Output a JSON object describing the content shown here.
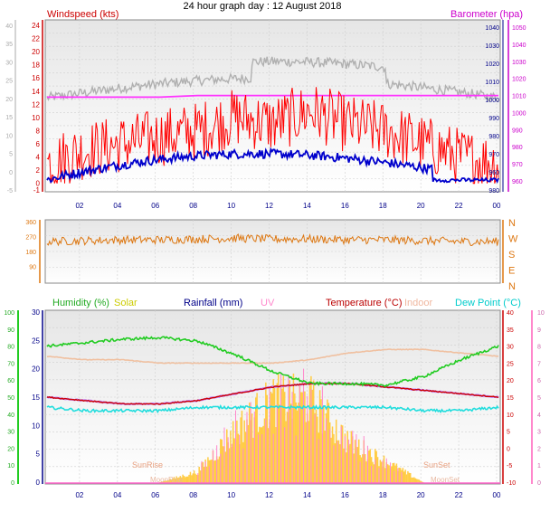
{
  "title": "24 hour graph day : 12 August 2018",
  "colors": {
    "wind_speed": "#ff0000",
    "wind_avg": "#0000cc",
    "gust": "#b0b0b0",
    "barometer": "#ff33ff",
    "direction": "#dd7711",
    "humidity": "#22cc22",
    "solar": "#ffcc44",
    "rainfall": "#000080",
    "uv": "#ff88cc",
    "temperature": "#cc0000",
    "indoor": "#f0c0a0",
    "dewpoint": "#22dddd",
    "heat": "#c080ff",
    "plot_bg": "#e8e8e8"
  },
  "x_ticks": [
    "02",
    "04",
    "06",
    "08",
    "10",
    "12",
    "14",
    "16",
    "18",
    "20",
    "22",
    "00"
  ],
  "panels": {
    "wind": {
      "left_label": "Windspeed (kts)",
      "right_label": "Barometer (hpa)",
      "left_ticks": [
        "-1",
        "0",
        "2",
        "4",
        "6",
        "8",
        "10",
        "12",
        "14",
        "16",
        "18",
        "20",
        "22",
        "24"
      ],
      "left_grey_ticks": [
        "-5",
        "0",
        "5",
        "10",
        "15",
        "20",
        "25",
        "30",
        "35",
        "40"
      ],
      "right_ticks": [
        "960",
        "970",
        "980",
        "990",
        "1000",
        "1010",
        "1020",
        "1030",
        "1040",
        "1050"
      ],
      "right_inner_ticks": [
        "980",
        "960",
        "970",
        "980",
        "990",
        "1000",
        "1010",
        "1020",
        "1030",
        "1040"
      ]
    },
    "direction": {
      "left_ticks": [
        "90",
        "180",
        "270",
        "360"
      ],
      "left_low_tick": "0",
      "compass": [
        "N",
        "W",
        "S",
        "E",
        "N"
      ]
    },
    "temp": {
      "labels": {
        "humidity": "Humidity (%)",
        "solar": "Solar",
        "rainfall": "Rainfall (mm)",
        "uv": "UV",
        "temperature": "Temperature (°C)",
        "indoor": "Indoor",
        "dewpoint": "Dew Point (°C)"
      },
      "outer_left_ticks": [
        "0",
        "10",
        "20",
        "30",
        "40",
        "50",
        "60",
        "70",
        "80",
        "90",
        "100"
      ],
      "inner_left_ticks": [
        "0",
        "5",
        "10",
        "15",
        "20",
        "25",
        "30"
      ],
      "inner_right_ticks": [
        "-10",
        "-5",
        "0",
        "5",
        "10",
        "15",
        "20",
        "25",
        "30",
        "35",
        "40"
      ],
      "outer_right_ticks": [
        "0",
        "1",
        "2",
        "3",
        "4",
        "5",
        "6",
        "7",
        "8",
        "9",
        "10"
      ],
      "sunrise": "SunRise",
      "sunset": "SunSet",
      "moonrise": "MoonRise",
      "moonset": "MoonSet"
    }
  },
  "chart_data": [
    {
      "type": "line",
      "title": "24 hour graph day : 12 August 2018",
      "x": [
        0,
        2,
        4,
        6,
        8,
        10,
        12,
        14,
        16,
        18,
        20,
        22,
        24
      ],
      "series": [
        {
          "name": "Windspeed (kts)",
          "values": [
            3,
            5,
            6,
            7,
            8,
            10,
            9,
            11,
            9,
            8,
            6,
            4,
            3
          ]
        },
        {
          "name": "Barometer (hpa)",
          "values": [
            1009,
            1009,
            1009,
            1009,
            1010,
            1010,
            1010,
            1010,
            1010,
            1010,
            1010,
            1010,
            1010
          ]
        }
      ],
      "ylim_left": [
        -1,
        24
      ],
      "ylim_right": [
        960,
        1050
      ]
    },
    {
      "type": "line",
      "x": [
        0,
        2,
        4,
        6,
        8,
        10,
        12,
        14,
        16,
        18,
        20,
        22,
        24
      ],
      "series": [
        {
          "name": "Wind direction",
          "values": [
            240,
            245,
            250,
            250,
            255,
            260,
            255,
            255,
            250,
            250,
            245,
            240,
            240
          ]
        }
      ],
      "ylim": [
        0,
        360
      ]
    },
    {
      "type": "line",
      "x": [
        0,
        2,
        4,
        6,
        8,
        10,
        12,
        14,
        16,
        18,
        20,
        22,
        24
      ],
      "series": [
        {
          "name": "Humidity (%)",
          "values": [
            80,
            82,
            84,
            85,
            83,
            75,
            65,
            58,
            58,
            57,
            62,
            72,
            80
          ]
        },
        {
          "name": "Temperature (°C)",
          "values": [
            15,
            14,
            13,
            13,
            14,
            16,
            18,
            19,
            19,
            18,
            17,
            16,
            15
          ]
        },
        {
          "name": "Indoor",
          "values": [
            27,
            26,
            26,
            25,
            25,
            25,
            25,
            26,
            28,
            29,
            29,
            28,
            27
          ]
        },
        {
          "name": "Dew Point (°C)",
          "values": [
            12,
            11,
            11,
            11,
            12,
            12,
            12,
            12,
            12,
            12,
            11,
            11,
            12
          ]
        },
        {
          "name": "Solar",
          "values": [
            0,
            0,
            0,
            0,
            2,
            10,
            16,
            16,
            8,
            4,
            0,
            0,
            0
          ]
        }
      ],
      "ylim": [
        -10,
        40
      ]
    }
  ]
}
